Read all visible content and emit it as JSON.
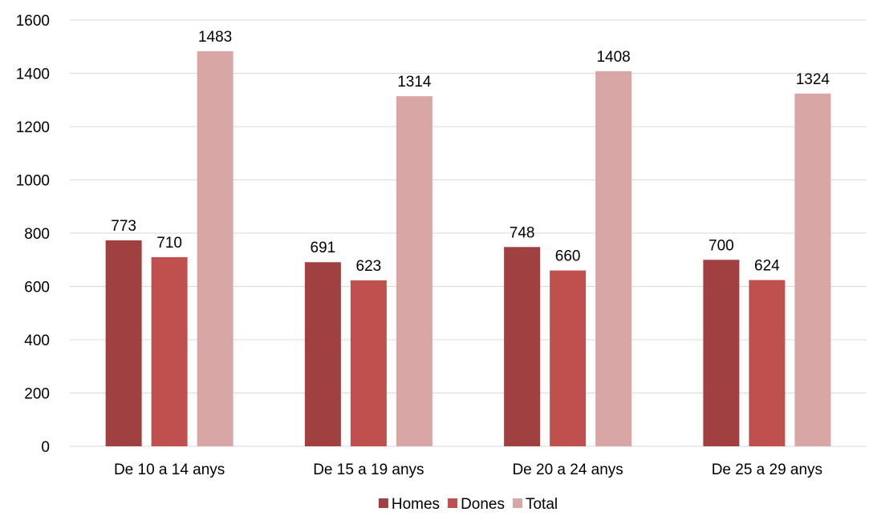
{
  "chart_data": {
    "type": "bar",
    "categories": [
      "De 10 a 14 anys",
      "De 15 a 19 anys",
      "De 20 a 24 anys",
      "De 25 a 29 anys"
    ],
    "series": [
      {
        "name": "Homes",
        "values": [
          773,
          691,
          748,
          700
        ],
        "color": "#a04040"
      },
      {
        "name": "Dones",
        "values": [
          710,
          623,
          660,
          624
        ],
        "color": "#c0504d"
      },
      {
        "name": "Total",
        "values": [
          1483,
          1314,
          1408,
          1324
        ],
        "color": "#d9a6a6"
      }
    ],
    "y_ticks": [
      "0",
      "200",
      "400",
      "600",
      "800",
      "1000",
      "1200",
      "1400",
      "1600"
    ],
    "ylim": [
      0,
      1600
    ],
    "grid": true,
    "legend_position": "bottom",
    "data_labels": true
  }
}
